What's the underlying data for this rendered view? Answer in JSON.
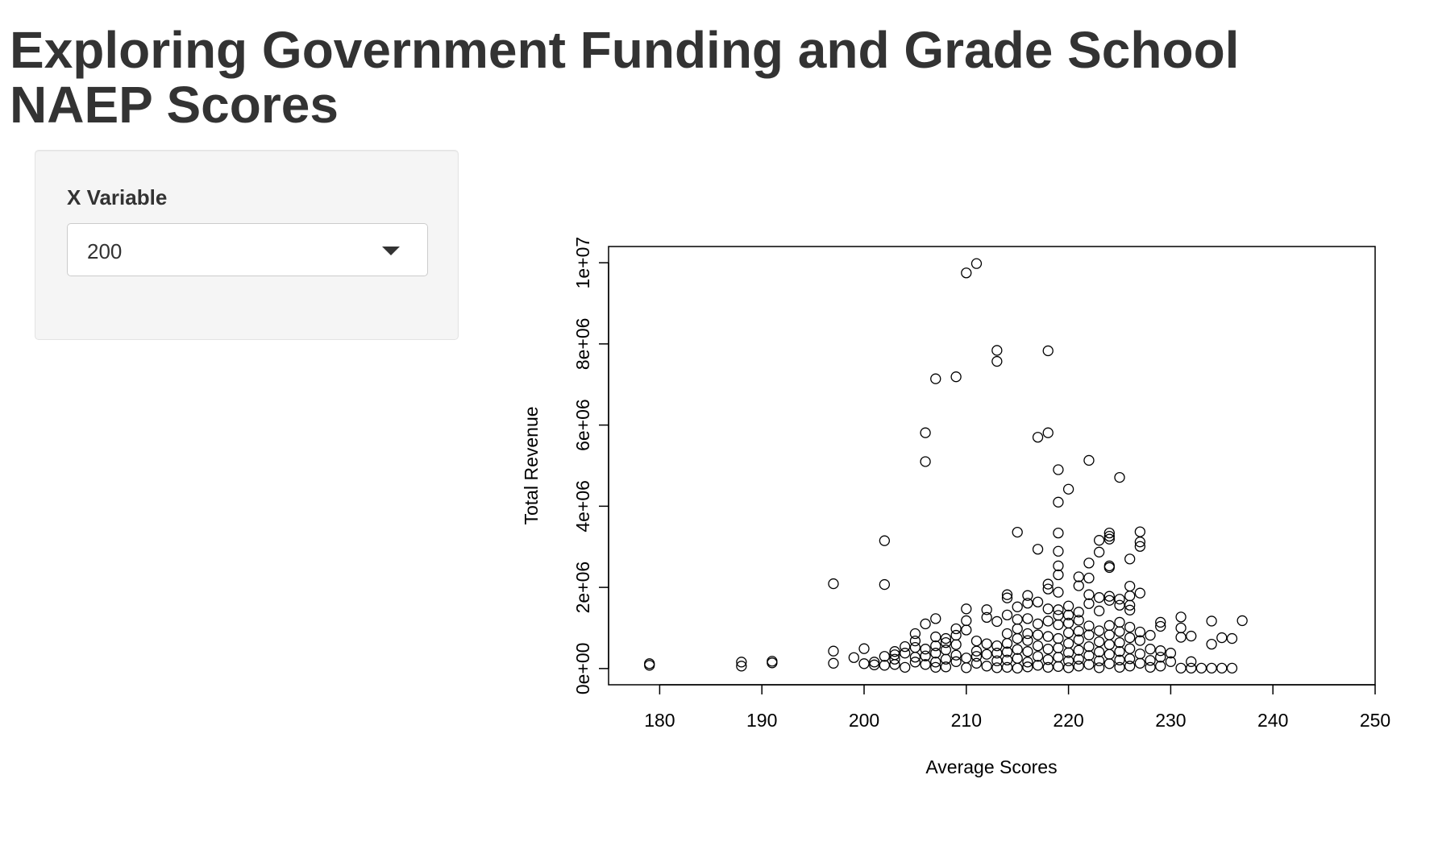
{
  "page": {
    "title": "Exploring Government Funding and Grade School NAEP Scores"
  },
  "sidebar": {
    "control_label": "X Variable",
    "select_value": "200",
    "caret_icon": "chevron-down-icon"
  },
  "chart_data": {
    "type": "scatter",
    "title": "",
    "xlabel": "Average Scores",
    "ylabel": "Total Revenue",
    "xlim": [
      175,
      250
    ],
    "ylim": [
      -400000,
      10400000
    ],
    "x_ticks": [
      180,
      190,
      200,
      210,
      220,
      230,
      240,
      250
    ],
    "x_tick_labels": [
      "180",
      "190",
      "200",
      "210",
      "220",
      "230",
      "240",
      "250"
    ],
    "y_ticks": [
      0,
      2000000,
      4000000,
      6000000,
      8000000,
      10000000
    ],
    "y_tick_labels": [
      "0e+00",
      "2e+06",
      "4e+06",
      "6e+06",
      "8e+06",
      "1e+07"
    ],
    "marker": "open-circle",
    "points": [
      {
        "x": 179,
        "y": 80000
      },
      {
        "x": 179,
        "y": 120000
      },
      {
        "x": 188,
        "y": 60000
      },
      {
        "x": 188,
        "y": 160000
      },
      {
        "x": 191,
        "y": 140000
      },
      {
        "x": 191,
        "y": 180000
      },
      {
        "x": 197,
        "y": 130000
      },
      {
        "x": 197,
        "y": 430000
      },
      {
        "x": 197,
        "y": 2090000
      },
      {
        "x": 199,
        "y": 270000
      },
      {
        "x": 200,
        "y": 120000
      },
      {
        "x": 200,
        "y": 490000
      },
      {
        "x": 201,
        "y": 90000
      },
      {
        "x": 201,
        "y": 160000
      },
      {
        "x": 202,
        "y": 2070000
      },
      {
        "x": 202,
        "y": 3150000
      },
      {
        "x": 202,
        "y": 80000
      },
      {
        "x": 202,
        "y": 300000
      },
      {
        "x": 203,
        "y": 100000
      },
      {
        "x": 203,
        "y": 230000
      },
      {
        "x": 203,
        "y": 340000
      },
      {
        "x": 203,
        "y": 420000
      },
      {
        "x": 204,
        "y": 30000
      },
      {
        "x": 204,
        "y": 380000
      },
      {
        "x": 204,
        "y": 540000
      },
      {
        "x": 205,
        "y": 160000
      },
      {
        "x": 205,
        "y": 280000
      },
      {
        "x": 205,
        "y": 520000
      },
      {
        "x": 205,
        "y": 680000
      },
      {
        "x": 205,
        "y": 860000
      },
      {
        "x": 206,
        "y": 5100000
      },
      {
        "x": 206,
        "y": 5810000
      },
      {
        "x": 206,
        "y": 1100000
      },
      {
        "x": 206,
        "y": 480000
      },
      {
        "x": 206,
        "y": 310000
      },
      {
        "x": 206,
        "y": 100000
      },
      {
        "x": 207,
        "y": 7140000
      },
      {
        "x": 207,
        "y": 1230000
      },
      {
        "x": 207,
        "y": 780000
      },
      {
        "x": 207,
        "y": 560000
      },
      {
        "x": 207,
        "y": 380000
      },
      {
        "x": 207,
        "y": 160000
      },
      {
        "x": 207,
        "y": 30000
      },
      {
        "x": 208,
        "y": 40000
      },
      {
        "x": 208,
        "y": 230000
      },
      {
        "x": 208,
        "y": 460000
      },
      {
        "x": 208,
        "y": 640000
      },
      {
        "x": 208,
        "y": 740000
      },
      {
        "x": 209,
        "y": 7190000
      },
      {
        "x": 209,
        "y": 980000
      },
      {
        "x": 209,
        "y": 820000
      },
      {
        "x": 209,
        "y": 590000
      },
      {
        "x": 209,
        "y": 330000
      },
      {
        "x": 209,
        "y": 170000
      },
      {
        "x": 210,
        "y": 9750000
      },
      {
        "x": 210,
        "y": 1470000
      },
      {
        "x": 210,
        "y": 1180000
      },
      {
        "x": 210,
        "y": 950000
      },
      {
        "x": 210,
        "y": 260000
      },
      {
        "x": 210,
        "y": 20000
      },
      {
        "x": 211,
        "y": 9980000
      },
      {
        "x": 211,
        "y": 680000
      },
      {
        "x": 211,
        "y": 430000
      },
      {
        "x": 211,
        "y": 300000
      },
      {
        "x": 211,
        "y": 130000
      },
      {
        "x": 212,
        "y": 1450000
      },
      {
        "x": 212,
        "y": 1260000
      },
      {
        "x": 212,
        "y": 610000
      },
      {
        "x": 212,
        "y": 350000
      },
      {
        "x": 212,
        "y": 60000
      },
      {
        "x": 213,
        "y": 7840000
      },
      {
        "x": 213,
        "y": 7570000
      },
      {
        "x": 213,
        "y": 1160000
      },
      {
        "x": 213,
        "y": 560000
      },
      {
        "x": 213,
        "y": 380000
      },
      {
        "x": 213,
        "y": 190000
      },
      {
        "x": 213,
        "y": 20000
      },
      {
        "x": 214,
        "y": 1820000
      },
      {
        "x": 214,
        "y": 1740000
      },
      {
        "x": 214,
        "y": 1320000
      },
      {
        "x": 214,
        "y": 860000
      },
      {
        "x": 214,
        "y": 620000
      },
      {
        "x": 214,
        "y": 410000
      },
      {
        "x": 214,
        "y": 210000
      },
      {
        "x": 214,
        "y": 30000
      },
      {
        "x": 215,
        "y": 3360000
      },
      {
        "x": 215,
        "y": 1520000
      },
      {
        "x": 215,
        "y": 1210000
      },
      {
        "x": 215,
        "y": 980000
      },
      {
        "x": 215,
        "y": 740000
      },
      {
        "x": 215,
        "y": 470000
      },
      {
        "x": 215,
        "y": 250000
      },
      {
        "x": 215,
        "y": 10000
      },
      {
        "x": 216,
        "y": 1800000
      },
      {
        "x": 216,
        "y": 1610000
      },
      {
        "x": 216,
        "y": 1230000
      },
      {
        "x": 216,
        "y": 860000
      },
      {
        "x": 216,
        "y": 690000
      },
      {
        "x": 216,
        "y": 420000
      },
      {
        "x": 216,
        "y": 160000
      },
      {
        "x": 216,
        "y": 40000
      },
      {
        "x": 217,
        "y": 5700000
      },
      {
        "x": 217,
        "y": 2940000
      },
      {
        "x": 217,
        "y": 1640000
      },
      {
        "x": 217,
        "y": 1100000
      },
      {
        "x": 217,
        "y": 830000
      },
      {
        "x": 217,
        "y": 560000
      },
      {
        "x": 217,
        "y": 300000
      },
      {
        "x": 217,
        "y": 80000
      },
      {
        "x": 218,
        "y": 7830000
      },
      {
        "x": 218,
        "y": 5810000
      },
      {
        "x": 218,
        "y": 2080000
      },
      {
        "x": 218,
        "y": 1960000
      },
      {
        "x": 218,
        "y": 1470000
      },
      {
        "x": 218,
        "y": 1170000
      },
      {
        "x": 218,
        "y": 790000
      },
      {
        "x": 218,
        "y": 480000
      },
      {
        "x": 218,
        "y": 220000
      },
      {
        "x": 218,
        "y": 30000
      },
      {
        "x": 219,
        "y": 4900000
      },
      {
        "x": 219,
        "y": 4100000
      },
      {
        "x": 219,
        "y": 3340000
      },
      {
        "x": 219,
        "y": 2890000
      },
      {
        "x": 219,
        "y": 2530000
      },
      {
        "x": 219,
        "y": 2310000
      },
      {
        "x": 219,
        "y": 1880000
      },
      {
        "x": 219,
        "y": 1450000
      },
      {
        "x": 219,
        "y": 1310000
      },
      {
        "x": 219,
        "y": 1080000
      },
      {
        "x": 219,
        "y": 740000
      },
      {
        "x": 219,
        "y": 510000
      },
      {
        "x": 219,
        "y": 280000
      },
      {
        "x": 219,
        "y": 50000
      },
      {
        "x": 220,
        "y": 4420000
      },
      {
        "x": 220,
        "y": 1540000
      },
      {
        "x": 220,
        "y": 1320000
      },
      {
        "x": 220,
        "y": 1120000
      },
      {
        "x": 220,
        "y": 880000
      },
      {
        "x": 220,
        "y": 620000
      },
      {
        "x": 220,
        "y": 390000
      },
      {
        "x": 220,
        "y": 190000
      },
      {
        "x": 220,
        "y": 20000
      },
      {
        "x": 221,
        "y": 2260000
      },
      {
        "x": 221,
        "y": 2040000
      },
      {
        "x": 221,
        "y": 1390000
      },
      {
        "x": 221,
        "y": 1190000
      },
      {
        "x": 221,
        "y": 920000
      },
      {
        "x": 221,
        "y": 710000
      },
      {
        "x": 221,
        "y": 450000
      },
      {
        "x": 221,
        "y": 230000
      },
      {
        "x": 221,
        "y": 60000
      },
      {
        "x": 222,
        "y": 5130000
      },
      {
        "x": 222,
        "y": 2600000
      },
      {
        "x": 222,
        "y": 2230000
      },
      {
        "x": 222,
        "y": 1820000
      },
      {
        "x": 222,
        "y": 1600000
      },
      {
        "x": 222,
        "y": 1050000
      },
      {
        "x": 222,
        "y": 830000
      },
      {
        "x": 222,
        "y": 540000
      },
      {
        "x": 222,
        "y": 320000
      },
      {
        "x": 222,
        "y": 100000
      },
      {
        "x": 223,
        "y": 3160000
      },
      {
        "x": 223,
        "y": 2870000
      },
      {
        "x": 223,
        "y": 1750000
      },
      {
        "x": 223,
        "y": 1420000
      },
      {
        "x": 223,
        "y": 930000
      },
      {
        "x": 223,
        "y": 660000
      },
      {
        "x": 223,
        "y": 410000
      },
      {
        "x": 223,
        "y": 190000
      },
      {
        "x": 223,
        "y": 20000
      },
      {
        "x": 224,
        "y": 3340000
      },
      {
        "x": 224,
        "y": 3260000
      },
      {
        "x": 224,
        "y": 3190000
      },
      {
        "x": 224,
        "y": 2530000
      },
      {
        "x": 224,
        "y": 2490000
      },
      {
        "x": 224,
        "y": 1780000
      },
      {
        "x": 224,
        "y": 1680000
      },
      {
        "x": 224,
        "y": 1060000
      },
      {
        "x": 224,
        "y": 830000
      },
      {
        "x": 224,
        "y": 590000
      },
      {
        "x": 224,
        "y": 350000
      },
      {
        "x": 224,
        "y": 120000
      },
      {
        "x": 225,
        "y": 4710000
      },
      {
        "x": 225,
        "y": 1710000
      },
      {
        "x": 225,
        "y": 1560000
      },
      {
        "x": 225,
        "y": 1140000
      },
      {
        "x": 225,
        "y": 910000
      },
      {
        "x": 225,
        "y": 640000
      },
      {
        "x": 225,
        "y": 420000
      },
      {
        "x": 225,
        "y": 210000
      },
      {
        "x": 225,
        "y": 30000
      },
      {
        "x": 226,
        "y": 2700000
      },
      {
        "x": 226,
        "y": 2030000
      },
      {
        "x": 226,
        "y": 1790000
      },
      {
        "x": 226,
        "y": 1560000
      },
      {
        "x": 226,
        "y": 1440000
      },
      {
        "x": 226,
        "y": 1020000
      },
      {
        "x": 226,
        "y": 760000
      },
      {
        "x": 226,
        "y": 490000
      },
      {
        "x": 226,
        "y": 240000
      },
      {
        "x": 226,
        "y": 60000
      },
      {
        "x": 227,
        "y": 3370000
      },
      {
        "x": 227,
        "y": 3120000
      },
      {
        "x": 227,
        "y": 3010000
      },
      {
        "x": 227,
        "y": 1860000
      },
      {
        "x": 227,
        "y": 900000
      },
      {
        "x": 227,
        "y": 690000
      },
      {
        "x": 227,
        "y": 360000
      },
      {
        "x": 227,
        "y": 130000
      },
      {
        "x": 228,
        "y": 820000
      },
      {
        "x": 228,
        "y": 480000
      },
      {
        "x": 228,
        "y": 200000
      },
      {
        "x": 228,
        "y": 30000
      },
      {
        "x": 229,
        "y": 1140000
      },
      {
        "x": 229,
        "y": 1040000
      },
      {
        "x": 229,
        "y": 440000
      },
      {
        "x": 229,
        "y": 280000
      },
      {
        "x": 229,
        "y": 60000
      },
      {
        "x": 230,
        "y": 380000
      },
      {
        "x": 230,
        "y": 170000
      },
      {
        "x": 231,
        "y": 1270000
      },
      {
        "x": 231,
        "y": 1000000
      },
      {
        "x": 231,
        "y": 770000
      },
      {
        "x": 231,
        "y": 10000
      },
      {
        "x": 232,
        "y": 800000
      },
      {
        "x": 232,
        "y": 170000
      },
      {
        "x": 232,
        "y": 10000
      },
      {
        "x": 233,
        "y": 10000
      },
      {
        "x": 234,
        "y": 1170000
      },
      {
        "x": 234,
        "y": 600000
      },
      {
        "x": 234,
        "y": 10000
      },
      {
        "x": 235,
        "y": 760000
      },
      {
        "x": 235,
        "y": 10000
      },
      {
        "x": 236,
        "y": 740000
      },
      {
        "x": 236,
        "y": 10000
      },
      {
        "x": 237,
        "y": 1180000
      }
    ]
  }
}
